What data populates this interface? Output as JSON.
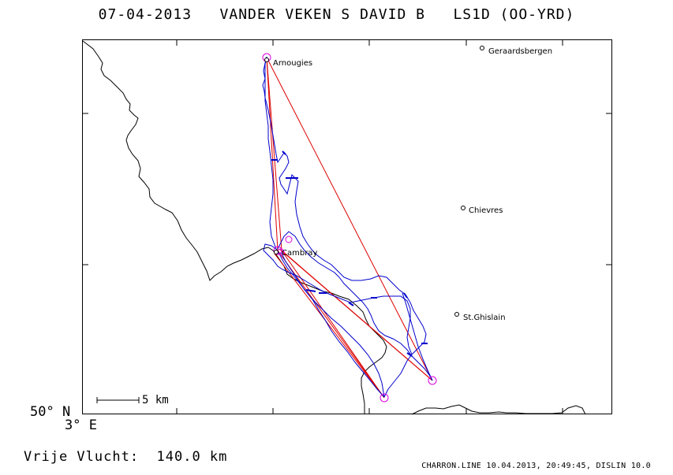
{
  "header": {
    "title": "07-04-2013   VANDER VEKEN S DAVID B   LS1D (OO-YRD)"
  },
  "axes": {
    "lat_label": "50° N",
    "lon_label": "3° E"
  },
  "cities": [
    {
      "name": "Geraardsbergen"
    },
    {
      "name": "Arnougies"
    },
    {
      "name": "Chievres"
    },
    {
      "name": "Cambray"
    },
    {
      "name": "St.Ghislain"
    }
  ],
  "scale": {
    "label": "5 km"
  },
  "footer": {
    "distance_label": "Vrije Vlucht:  140.0 km",
    "credit": "CHARRON.LINE 10.04.2013, 20:49:45, DISLIN 10.0"
  },
  "colors": {
    "track": "#0000cc",
    "task": "#dd0000",
    "turnpoint": "#dd00dd",
    "border": "#000000"
  }
}
